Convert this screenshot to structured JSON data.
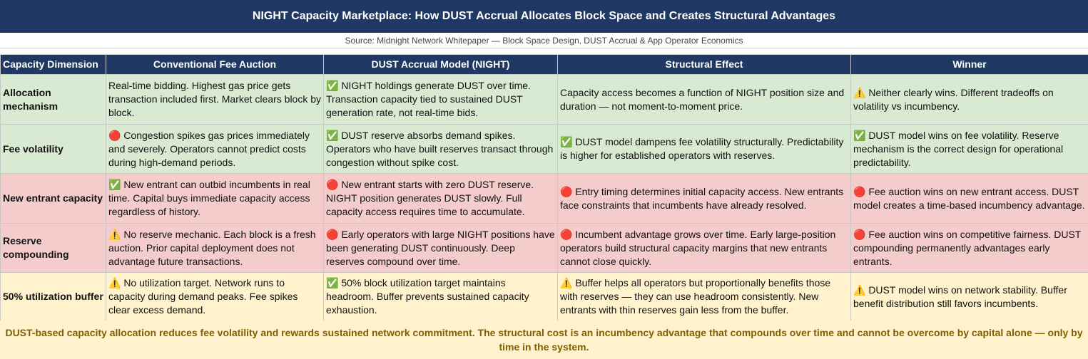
{
  "header": {
    "title": "NIGHT Capacity Marketplace: How DUST Accrual Allocates Block Space and Creates Structural Advantages",
    "source": "Source: Midnight Network Whitepaper — Block Space Design, DUST Accrual & App Operator Economics"
  },
  "table": {
    "columns": [
      "Capacity Dimension",
      "Conventional Fee Auction",
      "DUST Accrual Model (NIGHT)",
      "Structural Effect",
      "Winner"
    ],
    "rows": [
      [
        "Allocation mechanism",
        "Real-time bidding. Highest gas price gets transaction included first. Market clears block by block.",
        "✅ NIGHT holdings generate DUST over time. Transaction capacity tied to sustained DUST generation rate, not real-time bids.",
        "Capacity access becomes a function of NIGHT position size and duration — not moment-to-moment price.",
        "⚠️ Neither clearly wins. Different tradeoffs on volatility vs incumbency."
      ],
      [
        "Fee volatility",
        "🔴 Congestion spikes gas prices immediately and severely. Operators cannot predict costs during high-demand periods.",
        "✅ DUST reserve absorbs demand spikes. Operators who have built reserves transact through congestion without spike cost.",
        "✅ DUST model dampens fee volatility structurally. Predictability is higher for established operators with reserves.",
        "✅ DUST model wins on fee volatility. Reserve mechanism is the correct design for operational predictability."
      ],
      [
        "New entrant capacity",
        "✅ New entrant can outbid incumbents in real time. Capital buys immediate capacity access regardless of history.",
        "🔴 New entrant starts with zero DUST reserve. NIGHT position generates DUST slowly. Full capacity access requires time to accumulate.",
        "🔴 Entry timing determines initial capacity access. New entrants face constraints that incumbents have already resolved.",
        "🔴 Fee auction wins on new entrant access. DUST model creates a time-based incumbency advantage."
      ],
      [
        "Reserve compounding",
        "⚠️ No reserve mechanic. Each block is a fresh auction. Prior capital deployment does not advantage future transactions.",
        "🔴 Early operators with large NIGHT positions have been generating DUST continuously. Deep reserves compound over time.",
        "🔴 Incumbent advantage grows over time. Early large-position operators build structural capacity margins that new entrants cannot close quickly.",
        "🔴 Fee auction wins on competitive fairness. DUST compounding permanently advantages early entrants."
      ],
      [
        "50% utilization buffer",
        "⚠️ No utilization target. Network runs to capacity during demand peaks. Fee spikes clear excess demand.",
        "✅ 50% block utilization target maintains headroom. Buffer prevents sustained capacity exhaustion.",
        "⚠️ Buffer helps all operators but proportionally benefits those with reserves — they can use headroom consistently. New entrants with thin reserves gain less from the buffer.",
        "⚠️ DUST model wins on network stability. Buffer benefit distribution still favors incumbents."
      ]
    ]
  },
  "footer": "DUST-based capacity allocation reduces fee volatility and rewards sustained network commitment. The structural cost is an incumbency advantage that compounds over time and cannot be overcome by capital alone — only by time in the system."
}
